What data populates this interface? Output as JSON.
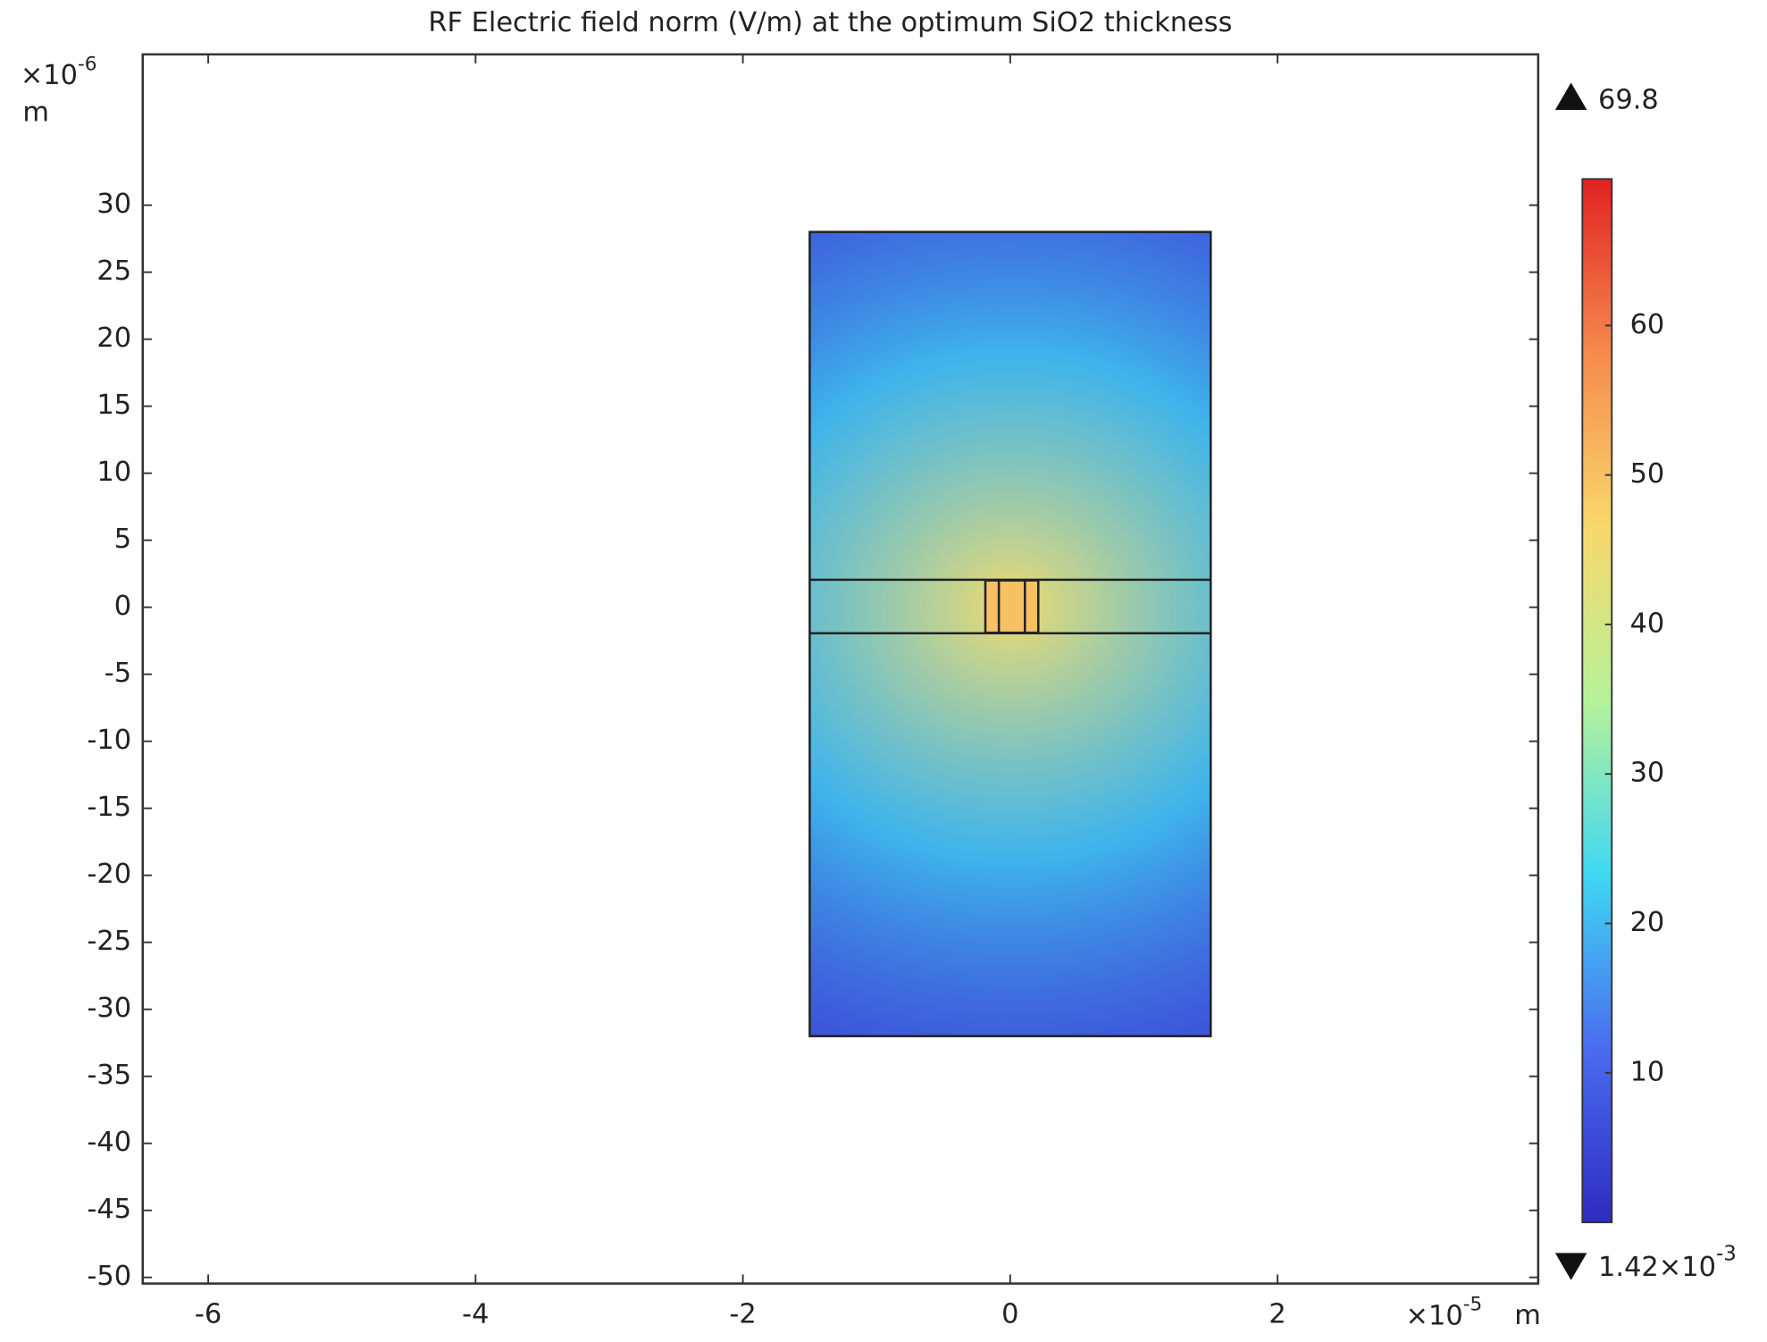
{
  "chart_data": {
    "type": "field",
    "title": "RF Electric field norm (V/m) at the optimum SiO2 thickness",
    "xlim": [
      -6.49,
      3.95
    ],
    "ylim": [
      -50.46,
      41.25
    ],
    "xticks": [
      -6,
      -4,
      -2,
      0,
      2
    ],
    "yticks": [
      30,
      25,
      20,
      15,
      10,
      5,
      0,
      -5,
      -10,
      -15,
      -20,
      -25,
      -30,
      -35,
      -40,
      -45,
      -50
    ],
    "x_multiplier": {
      "base": "×10",
      "exponent": "-5"
    },
    "x_unit": "m",
    "y_multiplier": {
      "base": "×10",
      "exponent": "-6"
    },
    "y_unit": "m",
    "clim": [
      0.00142,
      69.8
    ],
    "cticks": [
      10,
      20,
      30,
      40,
      50,
      60
    ],
    "cmax_label": "69.8",
    "cmin_label": {
      "base": "1.42×10",
      "exponent": "-3"
    },
    "colormap": [
      "#2e2bc0",
      "#4a6cf0",
      "#3fd8f2",
      "#b6f29a",
      "#f8d86a",
      "#f68a4e",
      "#e02222"
    ],
    "regions": [
      {
        "x": [
          -1.5,
          1.5
        ],
        "y": [
          -32,
          28
        ],
        "value": 4
      },
      {
        "x": [
          -0.186,
          0.21
        ],
        "y": [
          -1.9,
          2.0
        ],
        "value": 50
      }
    ],
    "hotspot": {
      "x": 0.012,
      "y": 0.05,
      "radius": 6,
      "value": 45
    },
    "boundaries": [
      {
        "x": [
          -1.5,
          1.5
        ],
        "y": [
          2.05,
          2.05
        ]
      },
      {
        "x": [
          -1.5,
          1.5
        ],
        "y": [
          -1.94,
          -1.94
        ]
      },
      {
        "x": [
          -0.085,
          -0.085
        ],
        "y": [
          -1.9,
          2.0
        ]
      },
      {
        "x": [
          0.11,
          0.11
        ],
        "y": [
          -1.9,
          2.0
        ]
      }
    ]
  }
}
